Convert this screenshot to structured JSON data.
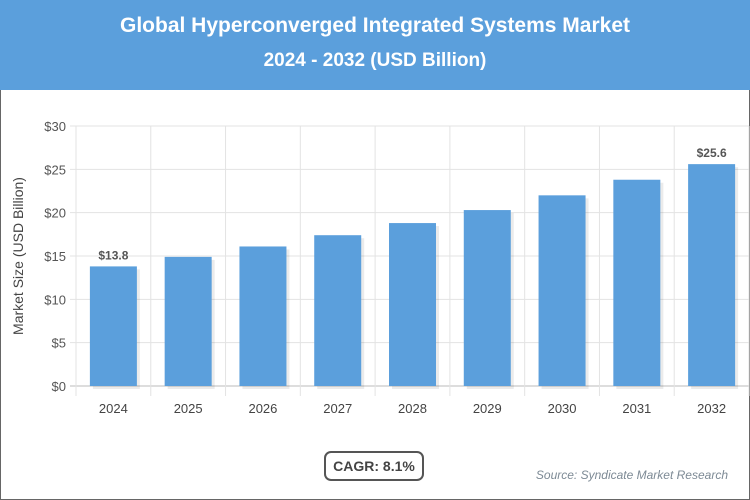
{
  "chart_data": {
    "type": "bar",
    "title": "Global Hyperconverged Integrated Systems Market",
    "subtitle": "2024 - 2032 (USD Billion)",
    "xlabel": "",
    "ylabel": "Market Size (USD Billion)",
    "categories": [
      "2024",
      "2025",
      "2026",
      "2027",
      "2028",
      "2029",
      "2030",
      "2031",
      "2032"
    ],
    "values": [
      13.8,
      14.9,
      16.1,
      17.4,
      18.8,
      20.3,
      22.0,
      23.8,
      25.6
    ],
    "data_labels": {
      "0": "$13.8",
      "8": "$25.6"
    },
    "ylim": [
      0,
      30
    ],
    "yticks": [
      "$0",
      "$5",
      "$10",
      "$15",
      "$20",
      "$25",
      "$30"
    ],
    "grid": true,
    "bar_color": "#5b9fdc",
    "header_color": "#5b9fdc"
  },
  "cagr": "CAGR: 8.1%",
  "source": "Source: Syndicate Market Research"
}
